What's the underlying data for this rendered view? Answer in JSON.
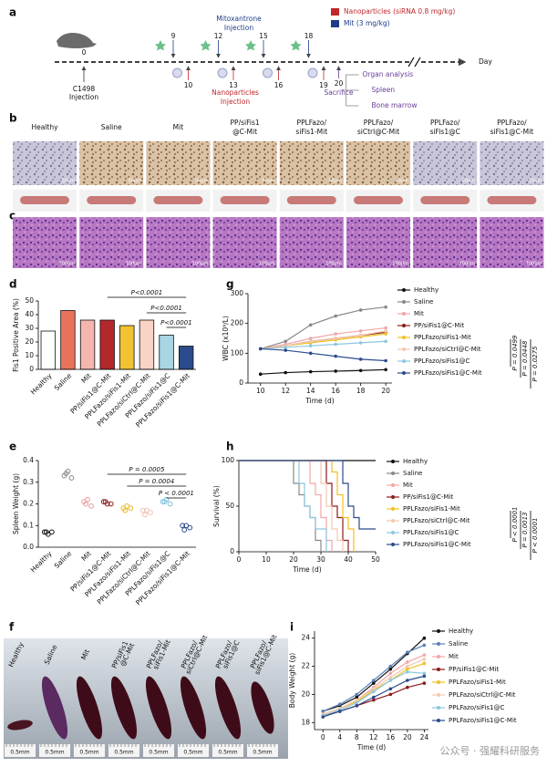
{
  "figure": {
    "panel_letters": [
      "a",
      "b",
      "c",
      "d",
      "e",
      "f",
      "g",
      "h",
      "i"
    ],
    "timeline": {
      "legend": [
        "Nanoparticles (siRNA 0.8 mg/kg)",
        "Mit (3 mg/kg)"
      ],
      "start_day": 0,
      "mit_days": [
        9,
        12,
        15,
        18
      ],
      "np_days": [
        10,
        13,
        16,
        19
      ],
      "sacrifice_day": 20,
      "day_label": "Day",
      "c1498": [
        "C1498",
        "Injection"
      ],
      "mit_injection": [
        "Mitoxantrone",
        "Injection"
      ],
      "np_injection": [
        "Nanoparticles",
        "Injection"
      ],
      "sacrifice": "Sacrifice",
      "analysis": [
        "Organ analysis",
        "Spleen",
        "Bone marrow"
      ]
    },
    "groups": [
      [
        "Healthy"
      ],
      [
        "Saline"
      ],
      [
        "Mit"
      ],
      [
        "PP/siFis1",
        "@C-Mit"
      ],
      [
        "PPLFazo/",
        "siFis1-Mit"
      ],
      [
        "PPLFazo/",
        "siCtrl@C-Mit"
      ],
      [
        "PPLFazo/",
        "siFis1@C"
      ],
      [
        "PPLFazo/",
        "siFis1@C-Mit"
      ]
    ],
    "scale_b": "50μm",
    "scale_c": "100μm",
    "scale_f": "0.5mm",
    "watermark": "公众号 · 强耀科研服务"
  },
  "chart_data": [
    {
      "type": "bar",
      "panel": "d",
      "ylabel": "Fis1 Positive Area (%)",
      "categories": [
        "Healthy",
        "Saline",
        "Mit",
        "PP/siFis1@C-Mit",
        "PPLFazo/siFis1-Mit",
        "PPLFazo/siCtrl@C-Mit",
        "PPLFazo/siFis1@C",
        "PPLFazo/siFis1@C-Mit"
      ],
      "values": [
        28,
        43,
        36,
        36,
        32,
        36,
        25,
        17
      ],
      "colors": [
        "#ffffff",
        "#e8735a",
        "#f4b6ae",
        "#b3282d",
        "#f2c230",
        "#f8d3c6",
        "#a9d6e5",
        "#2b4b8c"
      ],
      "ylim": [
        0,
        50
      ],
      "yticks": [
        0,
        10,
        20,
        30,
        40,
        50
      ],
      "annotations": [
        "P<0.0001",
        "P<0.0001",
        "P<0.0001"
      ]
    },
    {
      "type": "line",
      "panel": "g",
      "ylabel": "WBC (x10⁹/L)",
      "xlabel": "Time (d)",
      "x": [
        10,
        12,
        14,
        16,
        18,
        20
      ],
      "xlim": [
        9,
        20.5
      ],
      "xticks": [
        10,
        12,
        14,
        16,
        18,
        20
      ],
      "ylim": [
        0,
        300
      ],
      "yticks": [
        0,
        100,
        200,
        300
      ],
      "series": [
        {
          "name": "Healthy",
          "color": "#111111",
          "values": [
            30,
            35,
            38,
            40,
            42,
            45
          ]
        },
        {
          "name": "Saline",
          "color": "#888888",
          "values": [
            115,
            140,
            195,
            225,
            245,
            255
          ]
        },
        {
          "name": "Mit",
          "color": "#f2a6a6",
          "values": [
            115,
            130,
            150,
            165,
            175,
            185
          ]
        },
        {
          "name": "PP/siFis1@C-Mit",
          "color": "#8b1a1a",
          "values": [
            115,
            125,
            140,
            150,
            160,
            170
          ]
        },
        {
          "name": "PPLFazo/siFis1-Mit",
          "color": "#f0c020",
          "values": [
            115,
            125,
            135,
            145,
            155,
            165
          ]
        },
        {
          "name": "PPLFazo/siCtrl@C-Mit",
          "color": "#f3c9b0",
          "values": [
            115,
            125,
            140,
            150,
            160,
            175
          ]
        },
        {
          "name": "PPLFazo/siFis1@C",
          "color": "#8cc8e0",
          "values": [
            115,
            120,
            125,
            130,
            135,
            140
          ]
        },
        {
          "name": "PPLFazo/siFis1@C-Mit",
          "color": "#2b4b8c",
          "values": [
            115,
            110,
            100,
            90,
            80,
            75
          ]
        }
      ],
      "annotations": [
        "P = 0.0499",
        "P = 0.0448",
        "P = 0.0275"
      ]
    },
    {
      "type": "scatter",
      "panel": "e",
      "ylabel": "Spleen Weight (g)",
      "categories": [
        "Healthy",
        "Saline",
        "Mit",
        "PP/siFis1@C-Mit",
        "PPLFazo/siFis1-Mit",
        "PPLFazo/siCtrl@C-Mit",
        "PPLFazo/siFis1@C",
        "PPLFazo/siFis1@C-Mit"
      ],
      "values": [
        [
          0.07,
          0.07,
          0.06,
          0.07
        ],
        [
          0.33,
          0.32,
          0.35,
          0.34
        ],
        [
          0.21,
          0.19,
          0.22,
          0.2
        ],
        [
          0.21,
          0.2,
          0.2,
          0.21
        ],
        [
          0.18,
          0.18,
          0.19,
          0.17
        ],
        [
          0.17,
          0.16,
          0.17,
          0.15
        ],
        [
          0.21,
          0.2,
          0.22,
          0.21
        ],
        [
          0.1,
          0.09,
          0.1,
          0.08
        ]
      ],
      "colors": [
        "#111111",
        "#888888",
        "#e89a9a",
        "#8b1a1a",
        "#e8b820",
        "#f0c0b0",
        "#7fc0da",
        "#2b4b8c"
      ],
      "ylim": [
        0,
        0.4
      ],
      "yticks": [
        {
          "value": 0,
          "label": "0.0"
        },
        0.1,
        0.2,
        0.3,
        0.4
      ],
      "annotations": [
        "P = 0.0005",
        "P = 0.0004",
        "P < 0.0001"
      ]
    },
    {
      "type": "survival",
      "panel": "h",
      "ylabel": "Survival (%)",
      "xlabel": "Time (d)",
      "xlim": [
        0,
        50
      ],
      "xticks": [
        0,
        10,
        20,
        30,
        40,
        50
      ],
      "ylim": [
        0,
        100
      ],
      "yticks": [
        0,
        50,
        100
      ],
      "series": [
        {
          "name": "Healthy",
          "color": "#111111",
          "x": [
            0,
            50
          ],
          "values": [
            100,
            100
          ]
        },
        {
          "name": "Saline",
          "color": "#888888",
          "x": [
            0,
            20,
            22,
            24,
            26,
            28,
            30
          ],
          "values": [
            100,
            75,
            62.5,
            50,
            37.5,
            12.5,
            0
          ]
        },
        {
          "name": "Mit",
          "color": "#f2a6a6",
          "x": [
            0,
            26,
            28,
            30,
            32,
            34
          ],
          "values": [
            100,
            75,
            62.5,
            37.5,
            12.5,
            0
          ]
        },
        {
          "name": "PP/siFis1@C-Mit",
          "color": "#8b1a1a",
          "x": [
            0,
            32,
            34,
            36,
            38,
            40
          ],
          "values": [
            100,
            75,
            50,
            37.5,
            12.5,
            0
          ]
        },
        {
          "name": "PPLFazo/siFis1-Mit",
          "color": "#f0c020",
          "x": [
            0,
            34,
            36,
            38,
            40,
            42
          ],
          "values": [
            100,
            87.5,
            62.5,
            37.5,
            25,
            0
          ]
        },
        {
          "name": "PPLFazo/siCtrl@C-Mit",
          "color": "#f3c9b0",
          "x": [
            0,
            30,
            32,
            34,
            36,
            38
          ],
          "values": [
            100,
            75,
            50,
            25,
            12.5,
            0
          ]
        },
        {
          "name": "PPLFazo/siFis1@C",
          "color": "#8cc8e0",
          "x": [
            0,
            22,
            24,
            26,
            28,
            32
          ],
          "values": [
            100,
            75,
            50,
            37.5,
            25,
            0
          ]
        },
        {
          "name": "PPLFazo/siFis1@C-Mit",
          "color": "#2b4b8c",
          "x": [
            0,
            38,
            40,
            42,
            44,
            50
          ],
          "values": [
            100,
            75,
            50,
            37.5,
            25,
            25
          ]
        }
      ],
      "annotations": [
        "P < 0.0001",
        "P = 0.0013",
        "P < 0.0001"
      ]
    },
    {
      "type": "line",
      "panel": "i",
      "ylabel": "Body Weight (g)",
      "xlabel": "Time (d)",
      "x": [
        0,
        4,
        8,
        12,
        16,
        20,
        24
      ],
      "xlim": [
        -2,
        25
      ],
      "xticks": [
        0,
        4,
        8,
        12,
        16,
        20,
        24
      ],
      "ylim": [
        17.5,
        24.5
      ],
      "yticks": [
        18,
        20,
        22,
        24
      ],
      "series": [
        {
          "name": "Healthy",
          "color": "#111111",
          "values": [
            18.8,
            19.2,
            19.8,
            20.8,
            21.8,
            22.9,
            24.0
          ]
        },
        {
          "name": "Saline",
          "color": "#5a7fb8",
          "values": [
            18.8,
            19.3,
            20.0,
            21.0,
            22.0,
            23.0,
            23.5
          ]
        },
        {
          "name": "Mit",
          "color": "#f2a6a6",
          "values": [
            18.6,
            19.0,
            19.6,
            20.5,
            21.5,
            22.3,
            22.8
          ]
        },
        {
          "name": "PP/siFis1@C-Mit",
          "color": "#8b1a1a",
          "values": [
            18.5,
            18.8,
            19.2,
            19.6,
            20.0,
            20.5,
            20.8
          ]
        },
        {
          "name": "PPLFazo/siFis1-Mit",
          "color": "#f0c020",
          "values": [
            18.6,
            19.0,
            19.5,
            20.3,
            21.0,
            21.8,
            22.2
          ]
        },
        {
          "name": "PPLFazo/siCtrl@C-Mit",
          "color": "#f3c9b0",
          "values": [
            18.6,
            19.0,
            19.6,
            20.4,
            21.2,
            22.0,
            22.5
          ]
        },
        {
          "name": "PPLFazo/siFis1@C",
          "color": "#8cc8e0",
          "values": [
            18.5,
            18.9,
            19.4,
            20.2,
            21.0,
            21.6,
            21.5
          ]
        },
        {
          "name": "PPLFazo/siFis1@C-Mit",
          "color": "#2b4b8c",
          "values": [
            18.4,
            18.8,
            19.2,
            19.8,
            20.4,
            21.0,
            21.3
          ]
        }
      ]
    }
  ]
}
